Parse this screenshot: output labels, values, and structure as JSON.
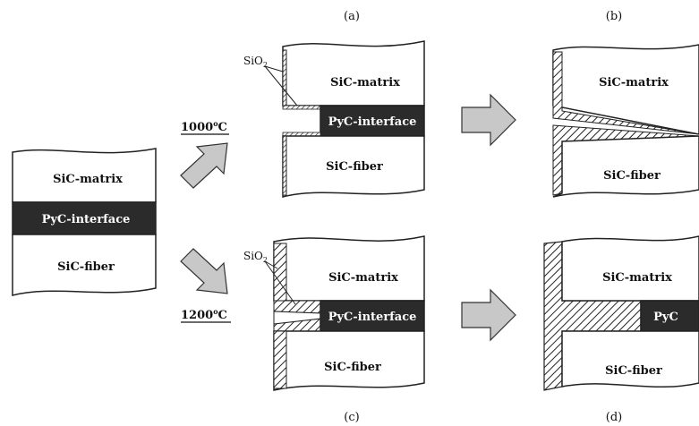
{
  "labels": {
    "sic_matrix": "SiC-matrix",
    "pyc_interface": "PyC-interface",
    "sic_fiber": "SiC-fiber",
    "pyc_short": "PyC",
    "sio2_prefix": "SiO",
    "sio2_sub": "2"
  },
  "panels": {
    "a": "(a)",
    "b": "(b)",
    "c": "(c)",
    "d": "(d)"
  },
  "temperatures": {
    "low_value": "1000",
    "high_value": "1200",
    "degree_symbol": "o",
    "unit": "C"
  },
  "colors": {
    "interface_fill": "#2b2b2b",
    "arrow_fill": "#c8c8c8",
    "outline": "#222222",
    "background": "#ffffff"
  }
}
